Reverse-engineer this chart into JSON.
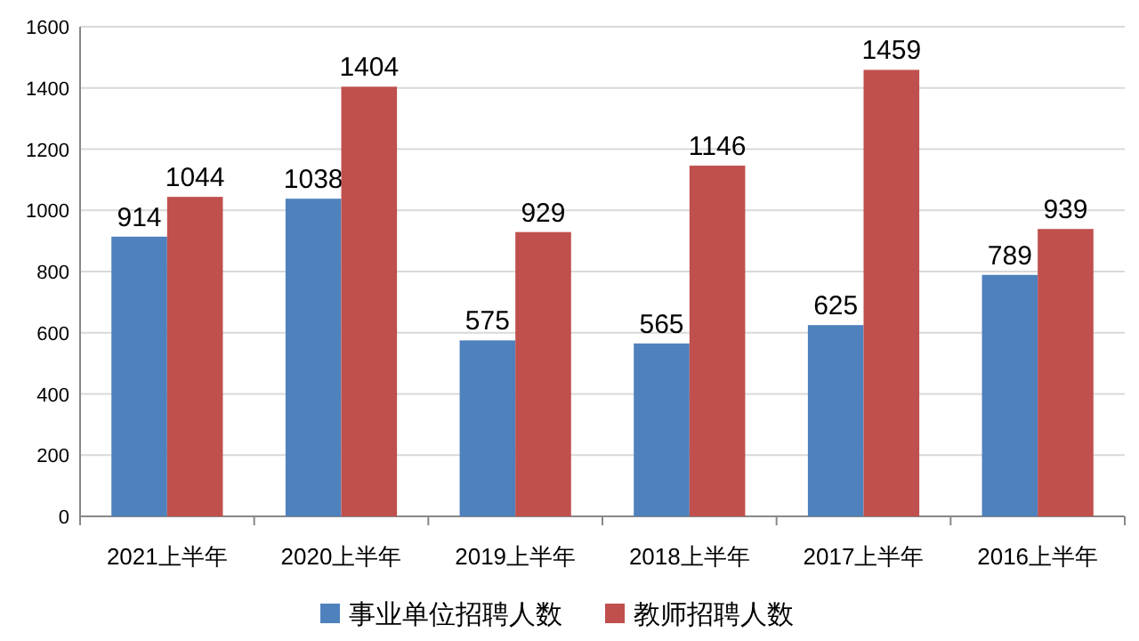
{
  "chart_data": {
    "type": "bar",
    "categories": [
      "2021上半年",
      "2020上半年",
      "2019上半年",
      "2018上半年",
      "2017上半年",
      "2016上半年"
    ],
    "series": [
      {
        "name": "事业单位招聘人数",
        "color": "#4f81bd",
        "values": [
          914,
          1038,
          575,
          565,
          625,
          789
        ]
      },
      {
        "name": "教师招聘人数",
        "color": "#c0504d",
        "values": [
          1044,
          1404,
          929,
          1146,
          1459,
          939
        ]
      }
    ],
    "ylim": [
      0,
      1600
    ],
    "yticks": [
      0,
      200,
      400,
      600,
      800,
      1000,
      1200,
      1400,
      1600
    ],
    "grid": "y",
    "legend": "bottom",
    "data_labels": true
  }
}
